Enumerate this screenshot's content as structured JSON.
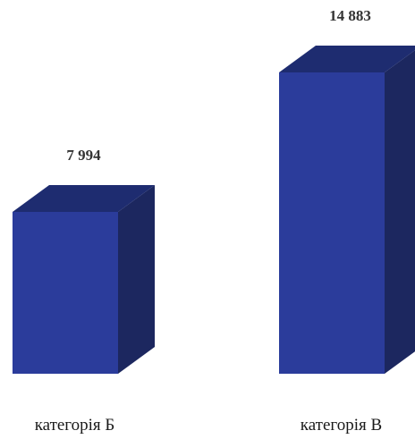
{
  "chart_data": {
    "type": "bar",
    "style": "3d",
    "categories": [
      "категорія Б",
      "категорія В"
    ],
    "values": [
      7994,
      14883
    ],
    "value_labels": [
      "7 994",
      "14 883"
    ],
    "title": "",
    "xlabel": "",
    "ylabel": "",
    "grid": false,
    "legend": "none",
    "colors": {
      "front": "#2B3C9B",
      "top": "#1E2C70",
      "side": "#1C275F"
    }
  }
}
